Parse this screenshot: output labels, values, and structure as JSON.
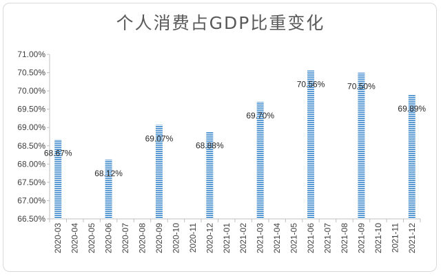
{
  "chart_data": {
    "type": "bar",
    "title": "个人消费占GDP比重变化",
    "xlabel": "",
    "ylabel": "",
    "ylim": [
      66.5,
      71.0
    ],
    "y_ticks": [
      "66.50%",
      "67.00%",
      "67.50%",
      "68.00%",
      "68.50%",
      "69.00%",
      "69.50%",
      "70.00%",
      "70.50%",
      "71.00%"
    ],
    "categories": [
      "2020-03",
      "2020-04",
      "2020-05",
      "2020-06",
      "2020-07",
      "2020-08",
      "2020-09",
      "2020-10",
      "2020-11",
      "2020-12",
      "2021-01",
      "2021-02",
      "2021-03",
      "2021-04",
      "2021-05",
      "2021-06",
      "2021-07",
      "2021-08",
      "2021-09",
      "2021-10",
      "2021-11",
      "2021-12"
    ],
    "values": [
      68.67,
      null,
      null,
      68.12,
      null,
      null,
      69.07,
      null,
      null,
      68.88,
      null,
      null,
      69.7,
      null,
      null,
      70.56,
      null,
      null,
      70.5,
      null,
      null,
      69.89
    ],
    "data_labels": [
      "68.67%",
      "",
      "",
      "68.12%",
      "",
      "",
      "69.07%",
      "",
      "",
      "68.88%",
      "",
      "",
      "69.70%",
      "",
      "",
      "70.56%",
      "",
      "",
      "70.50%",
      "",
      "",
      "69.89%"
    ],
    "grid": false,
    "legend": "none",
    "bar_color": "#5b9bd5"
  }
}
